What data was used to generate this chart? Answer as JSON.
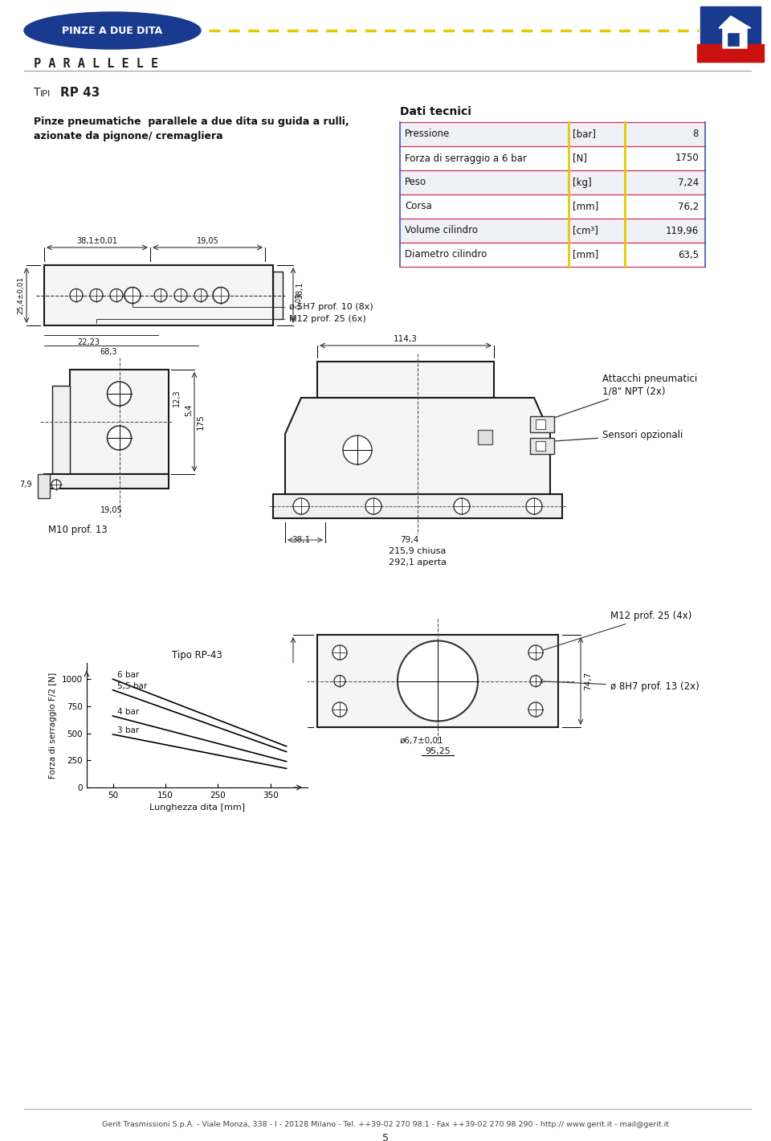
{
  "page_bg": "#ffffff",
  "header_logo_text": "PINZE A DUE DITA",
  "header_sub": "P A R A L L E L E",
  "title_small": "T",
  "title_small2": "IPI",
  "title_bold": " RP 43",
  "desc_line1": "Pinze pneumatiche  parallele a due dita su guida a rulli,",
  "desc_line2": "azionate da pignone/ cremagliera",
  "dati_title": "Dati tecnici",
  "table_rows": [
    [
      "Pressione",
      "[bar]",
      "8"
    ],
    [
      "Forza di serraggio a 6 bar",
      "[N]",
      "1750"
    ],
    [
      "Peso",
      "[kg]",
      "7,24"
    ],
    [
      "Corsa",
      "[mm]",
      "76,2"
    ],
    [
      "Volume cilindro",
      "[cm³]",
      "119,96"
    ],
    [
      "Diametro cilindro",
      "[mm]",
      "63,5"
    ]
  ],
  "graph_title": "Tipo RP-43",
  "graph_xlabel": "Lunghezza dita [mm]",
  "graph_ylabel": "Forza di serraggio F/2 [N]",
  "graph_xticks": [
    50,
    150,
    250,
    350
  ],
  "graph_yticks": [
    0,
    250,
    500,
    750,
    1000
  ],
  "graph_lines": [
    {
      "label": "6 bar",
      "x": [
        50,
        380
      ],
      "y": [
        1000,
        380
      ]
    },
    {
      "label": "5,5 bar",
      "x": [
        50,
        380
      ],
      "y": [
        900,
        330
      ]
    },
    {
      "label": "4 bar",
      "x": [
        50,
        380
      ],
      "y": [
        660,
        240
      ]
    },
    {
      "label": "3 bar",
      "x": [
        50,
        380
      ],
      "y": [
        490,
        175
      ]
    }
  ],
  "footer_text": "Gerit Trasmissioni S.p.A. - Viale Monza, 338 - I - 20128 Milano - Tel. ++39-02 270 98.1 - Fax ++39-02 270 98 290 - http:// www.gerit.it - mail@gerit.it",
  "page_num": "5"
}
